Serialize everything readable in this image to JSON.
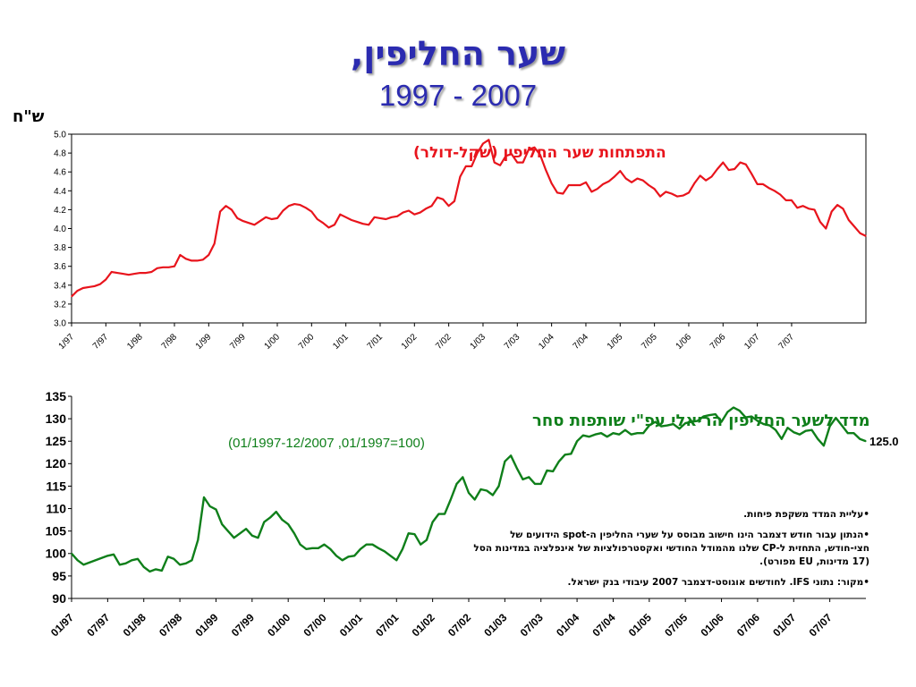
{
  "page": {
    "title_line1": "שער החליפין,",
    "title_line2": "1997 - 2007",
    "unit_label": "ש\"ח"
  },
  "notes": [
    "•עליית המדד משקפת פיחות.",
    "•הנתון עבור חודש  דצמבר הינו חישוב מבוסס על שערי החליפין ה-spot  הידועים של חצי-חודש, התחזית ל-CP שלנו מהמודל החודשי ואקסטרפולציות של אינפלציה במדינות הסל (17 מדינות, EU מפורט).",
    "•מקור: נתוני IFS. לחודשים אוגוסט-דצמבר 2007 עיבודי בנק ישראל."
  ],
  "colors": {
    "title": "#2b2bb0",
    "nominal": "#e8141c",
    "real": "#0f7f1a",
    "grid": "#000000"
  },
  "chart_data": [
    {
      "type": "line",
      "title": "התפתחות שער החליפין (שקל-דולר)",
      "xlabel": "",
      "ylabel": "ש\"ח",
      "ylim": [
        3.0,
        5.0
      ],
      "yticks": [
        "3.0",
        "3.2",
        "3.4",
        "3.6",
        "3.8",
        "4.0",
        "4.2",
        "4.4",
        "4.6",
        "4.8",
        "5.0"
      ],
      "x_tick_labels": [
        "1/97",
        "7/97",
        "1/98",
        "7/98",
        "1/99",
        "7/99",
        "1/00",
        "7/00",
        "1/01",
        "7/01",
        "1/02",
        "7/02",
        "1/03",
        "7/03",
        "1/04",
        "7/04",
        "1/05",
        "7/05",
        "1/06",
        "7/06",
        "1/07",
        "7/07"
      ],
      "x_start": "1/97",
      "x_end": "12/07",
      "series": [
        {
          "color": "#e8141c",
          "values": [
            3.28,
            3.34,
            3.37,
            3.38,
            3.39,
            3.41,
            3.46,
            3.54,
            3.53,
            3.52,
            3.51,
            3.52,
            3.53,
            3.53,
            3.54,
            3.58,
            3.59,
            3.59,
            3.6,
            3.72,
            3.68,
            3.66,
            3.66,
            3.67,
            3.72,
            3.84,
            4.18,
            4.24,
            4.2,
            4.11,
            4.08,
            4.06,
            4.04,
            4.08,
            4.12,
            4.1,
            4.11,
            4.19,
            4.24,
            4.26,
            4.25,
            4.22,
            4.18,
            4.1,
            4.06,
            4.01,
            4.04,
            4.15,
            4.12,
            4.09,
            4.07,
            4.05,
            4.04,
            4.12,
            4.11,
            4.1,
            4.12,
            4.13,
            4.17,
            4.19,
            4.15,
            4.17,
            4.21,
            4.24,
            4.33,
            4.31,
            4.24,
            4.29,
            4.55,
            4.66,
            4.66,
            4.8,
            4.9,
            4.94,
            4.7,
            4.67,
            4.77,
            4.79,
            4.7,
            4.7,
            4.84,
            4.86,
            4.78,
            4.62,
            4.48,
            4.38,
            4.37,
            4.46,
            4.46,
            4.46,
            4.49,
            4.39,
            4.42,
            4.47,
            4.5,
            4.55,
            4.61,
            4.53,
            4.49,
            4.53,
            4.51,
            4.46,
            4.42,
            4.34,
            4.39,
            4.37,
            4.34,
            4.35,
            4.38,
            4.48,
            4.56,
            4.51,
            4.55,
            4.63,
            4.7,
            4.62,
            4.63,
            4.7,
            4.68,
            4.58,
            4.47,
            4.47,
            4.43,
            4.4,
            4.36,
            4.3,
            4.3,
            4.22,
            4.24,
            4.21,
            4.2,
            4.07,
            4.0,
            4.18,
            4.25,
            4.21,
            4.09,
            4.02,
            3.95,
            3.92
          ]
        }
      ]
    },
    {
      "type": "line",
      "title": "מדד לשער החליפין הריאלי עפ\"י שותפות סחר",
      "subtitle": "(01/1997-12/2007 ,01/1997=100)",
      "xlabel": "",
      "ylabel": "",
      "ylim": [
        90,
        135
      ],
      "yticks": [
        "90",
        "95",
        "100",
        "105",
        "110",
        "115",
        "120",
        "125",
        "130",
        "135"
      ],
      "x_tick_labels": [
        "01/97",
        "07/97",
        "01/98",
        "07/98",
        "01/99",
        "07/99",
        "01/00",
        "07/00",
        "01/01",
        "07/01",
        "01/02",
        "07/02",
        "01/03",
        "07/03",
        "01/04",
        "07/04",
        "01/05",
        "07/05",
        "01/06",
        "07/06",
        "01/07",
        "07/07"
      ],
      "x_start": "01/97",
      "x_end": "12/07",
      "end_label": "125.0",
      "series": [
        {
          "color": "#0f7f1a",
          "values": [
            100.0,
            98.5,
            97.5,
            98.0,
            98.5,
            99.0,
            99.5,
            99.8,
            97.5,
            97.8,
            98.5,
            98.8,
            97.0,
            96.0,
            96.5,
            96.2,
            99.3,
            98.8,
            97.5,
            97.8,
            98.5,
            103.0,
            112.5,
            110.5,
            109.8,
            106.5,
            105.0,
            103.5,
            104.5,
            105.5,
            104.0,
            103.5,
            107.0,
            108.0,
            109.3,
            107.5,
            106.5,
            104.5,
            102.0,
            101.0,
            101.2,
            101.2,
            102.0,
            101.0,
            99.5,
            98.5,
            99.3,
            99.5,
            101.0,
            102.0,
            102.0,
            101.2,
            100.5,
            99.5,
            98.5,
            101.0,
            104.5,
            104.3,
            102.0,
            103.0,
            107.0,
            108.8,
            108.8,
            112.0,
            115.5,
            117.0,
            113.5,
            112.0,
            114.3,
            114.0,
            113.0,
            115.0,
            120.5,
            121.8,
            119.0,
            116.5,
            117.0,
            115.5,
            115.5,
            118.5,
            118.3,
            120.5,
            122.0,
            122.2,
            125.0,
            126.3,
            126.0,
            126.5,
            126.8,
            126.0,
            126.8,
            126.5,
            127.5,
            126.5,
            126.8,
            126.8,
            128.5,
            129.3,
            128.3,
            128.5,
            128.8,
            127.8,
            129.0,
            129.3,
            129.5,
            130.5,
            130.8,
            131.0,
            129.3,
            131.5,
            132.5,
            131.8,
            130.3,
            130.5,
            129.5,
            128.8,
            128.5,
            127.5,
            125.5,
            128.0,
            127.0,
            126.5,
            127.3,
            127.5,
            125.5,
            124.0,
            128.3,
            130.2,
            128.5,
            126.8,
            126.8,
            125.5,
            125.0
          ]
        }
      ]
    }
  ]
}
